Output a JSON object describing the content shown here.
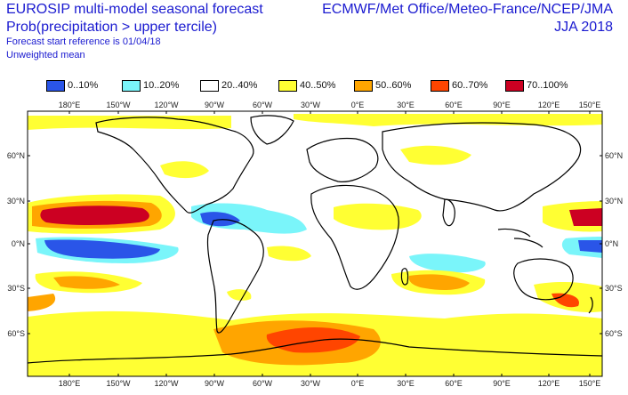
{
  "header": {
    "title": "EUROSIP multi-model seasonal forecast",
    "subtitle": "Prob(precipitation > upper tercile)",
    "start_ref": "Forecast start reference is 01/04/18",
    "weighting": "Unweighted mean",
    "source": "ECMWF/Met Office/Meteo-France/NCEP/JMA",
    "season": "JJA 2018"
  },
  "legend": [
    {
      "label": "0..10%",
      "color": "#2a55e8"
    },
    {
      "label": "10..20%",
      "color": "#7af5fa"
    },
    {
      "label": "20..40%",
      "color": "#ffffff"
    },
    {
      "label": "40..50%",
      "color": "#ffff33"
    },
    {
      "label": "50..60%",
      "color": "#ffa500"
    },
    {
      "label": "60..70%",
      "color": "#ff4500"
    },
    {
      "label": "70..100%",
      "color": "#cc0022"
    }
  ],
  "axes": {
    "lon_top": [
      "180°E",
      "150°W",
      "120°W",
      "90°W",
      "60°W",
      "30°W",
      "0°E",
      "30°E",
      "60°E",
      "90°E",
      "120°E",
      "150°E"
    ],
    "lon_bottom": [
      "180°E",
      "150°W",
      "120°W",
      "90°W",
      "60°W",
      "30°W",
      "0°E",
      "30°E",
      "60°E",
      "90°E",
      "120°E",
      "150°E"
    ],
    "lat_left": [
      "60°N",
      "30°N",
      "0°N",
      "30°S",
      "60°S"
    ],
    "lat_right": [
      "60°N",
      "30°N",
      "0°N",
      "30°S",
      "60°S"
    ]
  }
}
